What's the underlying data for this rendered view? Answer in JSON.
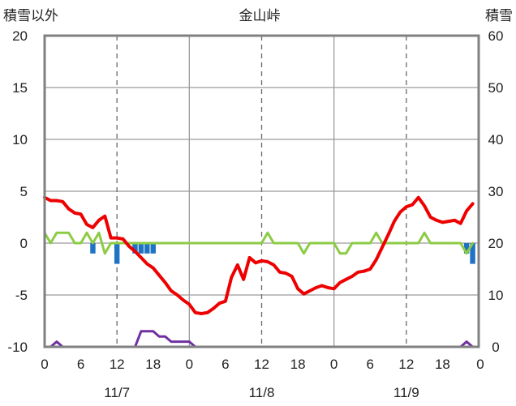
{
  "chart_data": {
    "type": "line",
    "title": "金山峠",
    "left_axis": {
      "label": "積雪以外",
      "ylim": [
        -10,
        20
      ],
      "ticks": [
        20,
        15,
        10,
        5,
        0,
        -5,
        -10
      ]
    },
    "right_axis": {
      "label": "積雪",
      "ylim": [
        0,
        60
      ],
      "ticks": [
        60,
        50,
        40,
        30,
        20,
        10,
        0
      ]
    },
    "x_axis": {
      "range_hours": [
        0,
        72
      ],
      "tick_labels": [
        "0",
        "6",
        "12",
        "18",
        "0",
        "6",
        "12",
        "18",
        "0",
        "6",
        "12",
        "18",
        "0"
      ],
      "date_labels": [
        "11/7",
        "11/8",
        "11/9"
      ],
      "day_dividers": [
        24,
        48
      ],
      "dashed_hours": [
        12,
        36,
        60
      ]
    },
    "grid": "horizontal",
    "colors": {
      "temperature": "#ee0000",
      "precip_bar": "#1f73c4",
      "green_line": "#8ccc44",
      "snow_line": "#7030a0",
      "frame": "#808080",
      "grid": "#9a9a9a"
    },
    "series": [
      {
        "axis": "left",
        "kind": "line",
        "color": "#ee0000",
        "x": [
          0,
          1,
          2,
          3,
          4,
          5,
          6,
          7,
          8,
          9,
          10,
          11,
          12,
          13,
          14,
          15,
          16,
          17,
          18,
          19,
          20,
          21,
          22,
          23,
          24,
          25,
          26,
          27,
          28,
          29,
          30,
          31,
          32,
          33,
          34,
          35,
          36,
          37,
          38,
          39,
          40,
          41,
          42,
          43,
          44,
          45,
          46,
          47,
          48,
          49,
          50,
          51,
          52,
          53,
          54,
          55,
          56,
          57,
          58,
          59,
          60,
          61,
          62,
          63,
          64,
          65,
          66,
          67,
          68,
          69,
          70,
          71
        ],
        "values": [
          4.4,
          4.1,
          4.1,
          4.0,
          3.3,
          2.9,
          2.8,
          1.8,
          1.5,
          2.2,
          2.6,
          0.5,
          0.5,
          0.4,
          -0.3,
          -0.8,
          -1.4,
          -2.0,
          -2.4,
          -3.1,
          -3.8,
          -4.6,
          -5.0,
          -5.5,
          -5.9,
          -6.7,
          -6.8,
          -6.7,
          -6.3,
          -5.8,
          -5.6,
          -3.3,
          -2.1,
          -3.5,
          -1.4,
          -1.9,
          -1.7,
          -1.8,
          -2.1,
          -2.8,
          -2.9,
          -3.2,
          -4.4,
          -4.9,
          -4.6,
          -4.3,
          -4.1,
          -4.3,
          -4.4,
          -3.8,
          -3.5,
          -3.2,
          -2.8,
          -2.7,
          -2.5,
          -1.6,
          -0.4,
          0.8,
          2.1,
          3.0,
          3.5,
          3.7,
          4.4,
          3.6,
          2.5,
          2.2,
          2.0,
          2.1,
          2.2,
          1.9,
          3.1,
          3.8
        ]
      },
      {
        "axis": "left",
        "kind": "line",
        "color": "#8ccc44",
        "x": [
          0,
          1,
          2,
          3,
          4,
          5,
          6,
          7,
          8,
          9,
          10,
          11,
          12,
          13,
          14,
          15,
          16,
          17,
          18,
          19,
          20,
          21,
          22,
          23,
          24,
          25,
          26,
          27,
          28,
          29,
          30,
          31,
          32,
          33,
          34,
          35,
          36,
          37,
          38,
          39,
          40,
          41,
          42,
          43,
          44,
          45,
          46,
          47,
          48,
          49,
          50,
          51,
          52,
          53,
          54,
          55,
          56,
          57,
          58,
          59,
          60,
          61,
          62,
          63,
          64,
          65,
          66,
          67,
          68,
          69,
          70,
          71
        ],
        "values": [
          1,
          0,
          1,
          1,
          1,
          0,
          0,
          1,
          0,
          1,
          -1,
          0,
          0,
          0,
          0,
          0,
          0,
          0,
          0,
          0,
          0,
          0,
          0,
          0,
          0,
          0,
          0,
          0,
          0,
          0,
          0,
          0,
          0,
          0,
          0,
          0,
          0,
          1,
          0,
          0,
          0,
          0,
          0,
          -1,
          0,
          0,
          0,
          0,
          0,
          -1,
          -1,
          0,
          0,
          0,
          0,
          1,
          0,
          0,
          0,
          0,
          0,
          0,
          0,
          1,
          0,
          0,
          0,
          0,
          0,
          0,
          -1,
          0
        ]
      },
      {
        "axis": "left",
        "kind": "bar",
        "color": "#1f73c4",
        "x": [
          8,
          12,
          15,
          16,
          17,
          18,
          70,
          71
        ],
        "values": [
          -1,
          -2,
          -1,
          -1,
          -1,
          -1,
          -1,
          -2
        ]
      },
      {
        "axis": "right",
        "kind": "line",
        "color": "#7030a0",
        "x": [
          0,
          1,
          2,
          3,
          4,
          5,
          6,
          7,
          8,
          9,
          10,
          11,
          12,
          13,
          14,
          15,
          16,
          17,
          18,
          19,
          20,
          21,
          22,
          23,
          24,
          25,
          26,
          27,
          28,
          29,
          30,
          31,
          32,
          33,
          34,
          35,
          36,
          37,
          38,
          39,
          40,
          41,
          42,
          43,
          44,
          45,
          46,
          47,
          48,
          49,
          50,
          51,
          52,
          53,
          54,
          55,
          56,
          57,
          58,
          59,
          60,
          61,
          62,
          63,
          64,
          65,
          66,
          67,
          68,
          69,
          70,
          71
        ],
        "values": [
          0,
          0,
          1,
          0,
          0,
          0,
          0,
          0,
          0,
          0,
          0,
          0,
          0,
          0,
          0,
          0,
          3,
          3,
          3,
          2,
          2,
          1,
          1,
          1,
          1,
          0,
          0,
          0,
          0,
          0,
          0,
          0,
          0,
          0,
          0,
          0,
          0,
          0,
          0,
          0,
          0,
          0,
          0,
          0,
          0,
          0,
          0,
          0,
          0,
          0,
          0,
          0,
          0,
          0,
          0,
          0,
          0,
          0,
          0,
          0,
          0,
          0,
          0,
          0,
          0,
          0,
          0,
          0,
          0,
          0,
          1,
          0
        ]
      }
    ]
  }
}
